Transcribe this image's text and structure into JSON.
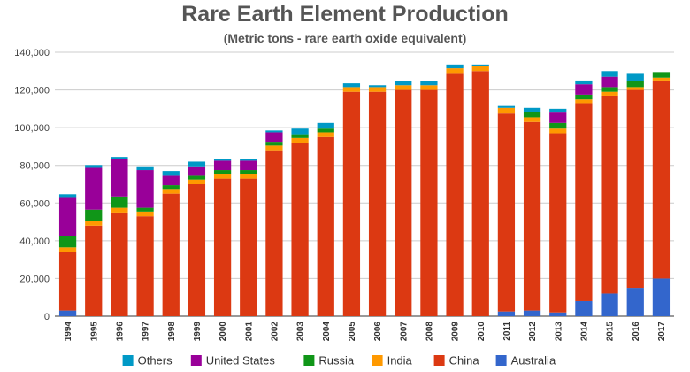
{
  "chart_data": {
    "type": "bar",
    "stacked": true,
    "title": "Rare Earth Element Production",
    "subtitle": "(Metric tons - rare earth oxide equivalent)",
    "xlabel": "",
    "ylabel": "",
    "ylim": [
      0,
      140000
    ],
    "yticks": [
      "0",
      "20,000",
      "40,000",
      "60,000",
      "80,000",
      "100,000",
      "120,000",
      "140,000"
    ],
    "grid": true,
    "legend_position": "bottom",
    "categories": [
      "1994",
      "1995",
      "1996",
      "1997",
      "1998",
      "1999",
      "2000",
      "2001",
      "2002",
      "2003",
      "2004",
      "2005",
      "2006",
      "2007",
      "2008",
      "2009",
      "2010",
      "2011",
      "2012",
      "2013",
      "2014",
      "2015",
      "2016",
      "2017"
    ],
    "series": [
      {
        "name": "Australia",
        "color": "#3366cc",
        "values": [
          3000,
          0,
          0,
          0,
          0,
          0,
          0,
          0,
          0,
          0,
          0,
          0,
          0,
          0,
          0,
          0,
          0,
          2500,
          3000,
          2000,
          8000,
          12000,
          15000,
          20000
        ]
      },
      {
        "name": "China",
        "color": "#dc3912",
        "values": [
          31000,
          48000,
          55000,
          53000,
          65000,
          70000,
          73000,
          73000,
          88000,
          92000,
          95000,
          119000,
          119000,
          120000,
          120000,
          129000,
          130000,
          105000,
          100000,
          95000,
          105000,
          105000,
          105000,
          105000
        ]
      },
      {
        "name": "India",
        "color": "#ff9900",
        "values": [
          2500,
          2500,
          2500,
          2500,
          2500,
          2500,
          2500,
          2500,
          2500,
          2500,
          2500,
          2500,
          2500,
          2500,
          2500,
          2500,
          2500,
          3000,
          2500,
          2500,
          2000,
          2000,
          1500,
          1500
        ]
      },
      {
        "name": "Russia",
        "color": "#109618",
        "values": [
          6000,
          6000,
          6000,
          2000,
          2000,
          2000,
          2000,
          2000,
          2000,
          2000,
          2000,
          0,
          0,
          0,
          0,
          0,
          0,
          0,
          3000,
          3000,
          2500,
          2500,
          3000,
          3000
        ]
      },
      {
        "name": "United States",
        "color": "#990099",
        "values": [
          20700,
          22200,
          20000,
          20000,
          5000,
          5000,
          5000,
          5000,
          5000,
          0,
          0,
          0,
          0,
          0,
          0,
          0,
          0,
          0,
          0,
          5500,
          5500,
          5500,
          0,
          0
        ]
      },
      {
        "name": "Others",
        "color": "#0099c6",
        "values": [
          1500,
          1500,
          1000,
          2000,
          2500,
          2500,
          1000,
          1000,
          1000,
          3000,
          3000,
          2000,
          1000,
          2000,
          2000,
          2000,
          1000,
          1000,
          2000,
          2000,
          2000,
          3000,
          4500,
          0
        ]
      }
    ],
    "legend_order": [
      "Others",
      "United States",
      "Russia",
      "India",
      "China",
      "Australia"
    ]
  }
}
